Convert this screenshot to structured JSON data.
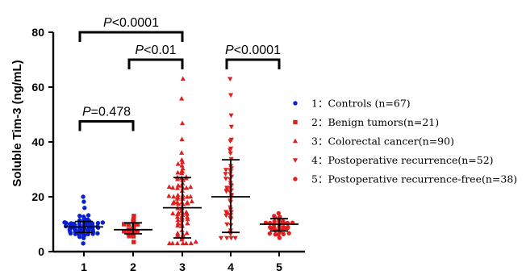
{
  "chart_data": {
    "type": "scatter",
    "ylabel": "Soluble Tim-3  (ng/mL)",
    "ylim": [
      0,
      80
    ],
    "yticks": [
      0,
      20,
      40,
      60,
      80
    ],
    "categories": [
      "1",
      "2",
      "3",
      "4",
      "5"
    ],
    "series": [
      {
        "name": "1：Controls (n=67)",
        "color": "#0a1ed2",
        "marker": "circle",
        "n": 67,
        "mean": 9,
        "sd_low": 7,
        "sd_high": 11,
        "min": 3,
        "max": 20
      },
      {
        "name": "2：Benign tumors(n=21)",
        "color": "#e0201e",
        "marker": "square",
        "n": 21,
        "mean": 8,
        "sd_low": 6.5,
        "sd_high": 10.5,
        "min": 3.5,
        "max": 13
      },
      {
        "name": "3：Colorectal cancer(n=90)",
        "color": "#e0201e",
        "marker": "triangle-up",
        "n": 90,
        "mean": 16,
        "sd_low": 5,
        "sd_high": 27,
        "min": 3,
        "max": 63
      },
      {
        "name": "4：Postoperative  recurrence(n=52)",
        "color": "#e0201e",
        "marker": "triangle-down",
        "n": 52,
        "mean": 20,
        "sd_low": 7,
        "sd_high": 33.5,
        "min": 5,
        "max": 63
      },
      {
        "name": "5：Postoperative recurrence-free(n=38)",
        "color": "#e0201e",
        "marker": "circle",
        "n": 38,
        "mean": 10,
        "sd_low": 7.5,
        "sd_high": 12,
        "min": 5,
        "max": 14
      }
    ],
    "annotations": [
      {
        "label_italic": "P",
        "label_rest": "<0.0001",
        "from": 1,
        "to": 3,
        "y": 80
      },
      {
        "label_italic": "P",
        "label_rest": "<0.01",
        "from": 2,
        "to": 3,
        "y": 70
      },
      {
        "label_italic": "P",
        "label_rest": "=0.478",
        "from": 1,
        "to": 2,
        "y": 47.5
      },
      {
        "label_italic": "P",
        "label_rest": "<0.0001",
        "from": 4,
        "to": 5,
        "y": 70
      }
    ],
    "legend_position": "right",
    "grid": false
  }
}
